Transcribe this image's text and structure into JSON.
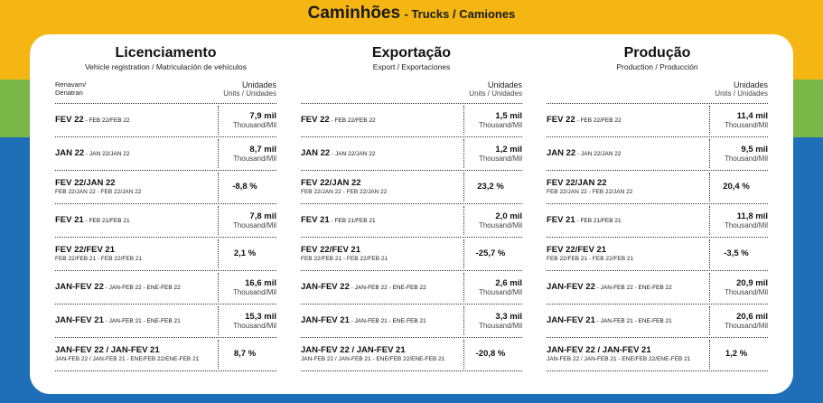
{
  "header": {
    "title_main": "Caminhões",
    "title_sub": "- Trucks / Camiones"
  },
  "colors": {
    "yellow": "#f5b614",
    "green": "#7ab648",
    "blue": "#1f6fb8"
  },
  "columns": [
    {
      "title": "Licenciamento",
      "subtitle": "Vehicle registration / Matriculación de vehículos",
      "source": [
        "Renavam/",
        "Denatran"
      ],
      "units": "Unidades",
      "units_sub": "Units / Unidades",
      "rows": [
        {
          "l1": "FEV 22",
          "l1s": " - FEB 22/FEB 22",
          "l2": "",
          "v1": "7,9 mil",
          "v2": "Thousand/Mil"
        },
        {
          "l1": "JAN 22",
          "l1s": " - JAN 22/JAN 22",
          "l2": "",
          "v1": "8,7 mil",
          "v2": "Thousand/Mil"
        },
        {
          "l1": "FEV 22/JAN 22",
          "l1s": "",
          "l2": "FEB 22/JAN 22 - FEB 22/JAN 22",
          "v1": "-8,8 %",
          "v2": ""
        },
        {
          "l1": "FEV 21",
          "l1s": " - FEB 21/FEB 21",
          "l2": "",
          "v1": "7,8 mil",
          "v2": "Thousand/Mil"
        },
        {
          "l1": "FEV 22/FEV 21",
          "l1s": "",
          "l2": "FEB 22/FEB 21 - FEB 22/FEB 21",
          "v1": "2,1 %",
          "v2": ""
        },
        {
          "l1": "JAN-FEV 22",
          "l1s": " - JAN-FEB 22 - ENE-FEB 22",
          "l2": "",
          "v1": "16,6 mil",
          "v2": "Thousand/Mil"
        },
        {
          "l1": "JAN-FEV 21",
          "l1s": " - JAN-FEB 21 - ENE-FEB 21",
          "l2": "",
          "v1": "15,3 mil",
          "v2": "Thousand/Mil"
        },
        {
          "l1": "JAN-FEV 22 / JAN-FEV 21",
          "l1s": "",
          "l2": "JAN-FEB 22 / JAN-FEB 21 - ENE/FEB 22/ENE-FEB 21",
          "v1": "8,7 %",
          "v2": ""
        }
      ]
    },
    {
      "title": "Exportação",
      "subtitle": "Export / Exportaciones",
      "source": [
        "",
        ""
      ],
      "units": "Unidades",
      "units_sub": "Units / Unidades",
      "rows": [
        {
          "l1": "FEV 22",
          "l1s": " - FEB 22/FEB 22",
          "l2": "",
          "v1": "1,5 mil",
          "v2": "Thousand/Mil"
        },
        {
          "l1": "JAN 22",
          "l1s": " - JAN 22/JAN 22",
          "l2": "",
          "v1": "1,2 mil",
          "v2": "Thousand/Mil"
        },
        {
          "l1": "FEV 22/JAN 22",
          "l1s": "",
          "l2": "FEB 22/JAN 22 - FEB 22/JAN 22",
          "v1": "23,2 %",
          "v2": ""
        },
        {
          "l1": "FEV 21",
          "l1s": " - FEB 21/FEB 21",
          "l2": "",
          "v1": "2,0 mil",
          "v2": "Thousand/Mil"
        },
        {
          "l1": "FEV 22/FEV 21",
          "l1s": "",
          "l2": "FEB 22/FEB 21 - FEB 22/FEB 21",
          "v1": "-25,7 %",
          "v2": ""
        },
        {
          "l1": "JAN-FEV 22",
          "l1s": " - JAN-FEB 22 - ENE-FEB 22",
          "l2": "",
          "v1": "2,6 mil",
          "v2": "Thousand/Mil"
        },
        {
          "l1": "JAN-FEV 21",
          "l1s": " - JAN-FEB 21 - ENE-FEB 21",
          "l2": "",
          "v1": "3,3 mil",
          "v2": "Thousand/Mil"
        },
        {
          "l1": "JAN-FEV 22 / JAN-FEV 21",
          "l1s": "",
          "l2": "JAN-FEB 22 / JAN-FEB 21 - ENE/FEB 22/ENE-FEB 21",
          "v1": "-20,8 %",
          "v2": ""
        }
      ]
    },
    {
      "title": "Produção",
      "subtitle": "Production / Producción",
      "source": [
        "",
        ""
      ],
      "units": "Unidades",
      "units_sub": "Units / Unidades",
      "rows": [
        {
          "l1": "FEV 22",
          "l1s": " - FEB 22/FEB 22",
          "l2": "",
          "v1": "11,4 mil",
          "v2": "Thousand/Mil"
        },
        {
          "l1": "JAN 22",
          "l1s": " - JAN 22/JAN 22",
          "l2": "",
          "v1": "9,5 mil",
          "v2": "Thousand/Mil"
        },
        {
          "l1": "FEV 22/JAN 22",
          "l1s": "",
          "l2": "FEB 22/JAN 22 - FEB 22/JAN 22",
          "v1": "20,4 %",
          "v2": ""
        },
        {
          "l1": "FEV 21",
          "l1s": " - FEB 21/FEB 21",
          "l2": "",
          "v1": "11,8 mil",
          "v2": "Thousand/Mil"
        },
        {
          "l1": "FEV 22/FEV 21",
          "l1s": "",
          "l2": "FEB 22/FEB 21 - FEB 22/FEB 21",
          "v1": "-3,5 %",
          "v2": ""
        },
        {
          "l1": "JAN-FEV 22",
          "l1s": " - JAN-FEB 22 - ENE-FEB 22",
          "l2": "",
          "v1": "20,9 mil",
          "v2": "Thousand/Mil"
        },
        {
          "l1": "JAN-FEV 21",
          "l1s": " - JAN-FEB 21 - ENE-FEB 21",
          "l2": "",
          "v1": "20,6 mil",
          "v2": "Thousand/Mil"
        },
        {
          "l1": "JAN-FEV 22 / JAN-FEV 21",
          "l1s": "",
          "l2": "JAN-FEB 22 / JAN-FEB 21 - ENE/FEB 22/ENE-FEB 21",
          "v1": "1,2 %",
          "v2": ""
        }
      ]
    }
  ]
}
